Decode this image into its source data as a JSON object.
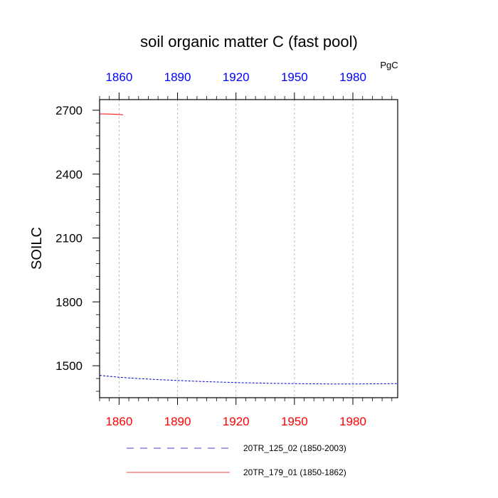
{
  "chart_data": {
    "type": "line",
    "title": "soil organic matter C (fast pool)",
    "units_label": "PgC",
    "ylabel": "SOILC",
    "xlabel": "",
    "xlim": [
      1850,
      2003
    ],
    "ylim": [
      1350,
      2750
    ],
    "x_ticks": [
      1860,
      1890,
      1920,
      1950,
      1980
    ],
    "x_tick_labels": [
      "1860",
      "1890",
      "1920",
      "1950",
      "1980"
    ],
    "y_ticks": [
      1500,
      1800,
      2100,
      2400,
      2700
    ],
    "y_tick_labels": [
      "1500",
      "1800",
      "2100",
      "2400",
      "2700"
    ],
    "grid": "vertical dashed at x ticks",
    "colors": {
      "bottom_tick_labels": "#ff0000",
      "top_tick_labels": "#0000ff",
      "grid": "#b0b0b0",
      "axis": "#000000"
    },
    "series": [
      {
        "name": "20TR_125_02 (1850-2003)",
        "color": "#0000cc",
        "style": "dashed",
        "x": [
          1850,
          1860,
          1870,
          1880,
          1890,
          1900,
          1910,
          1920,
          1930,
          1940,
          1950,
          1960,
          1970,
          1980,
          1990,
          2003
        ],
        "values": [
          1455,
          1446,
          1440,
          1435,
          1431,
          1427,
          1424,
          1421,
          1419,
          1417,
          1416,
          1415,
          1414,
          1414,
          1415,
          1416
        ]
      },
      {
        "name": "20TR_179_01 (1850-1862)",
        "color": "#ff0000",
        "style": "solid",
        "x": [
          1850,
          1853,
          1856,
          1859,
          1862
        ],
        "values": [
          2683,
          2683,
          2682,
          2681,
          2679
        ]
      }
    ],
    "legend_position": "bottom"
  }
}
